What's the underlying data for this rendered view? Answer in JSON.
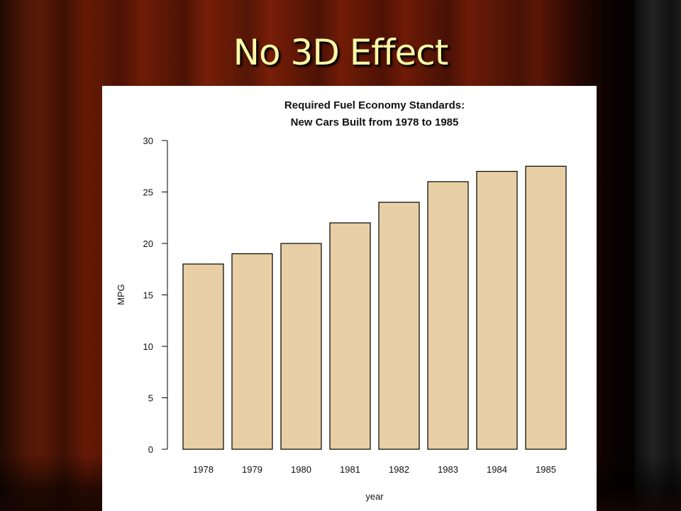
{
  "slide": {
    "title": "No 3D Effect"
  },
  "chart_data": {
    "type": "bar",
    "title_lines": [
      "Required Fuel Economy Standards:",
      "New Cars Built from 1978 to 1985"
    ],
    "categories": [
      "1978",
      "1979",
      "1980",
      "1981",
      "1982",
      "1983",
      "1984",
      "1985"
    ],
    "values": [
      18,
      19,
      20,
      22,
      24,
      26,
      27,
      27.5
    ],
    "xlabel": "year",
    "ylabel": "MPG",
    "ylim": [
      0,
      30
    ],
    "yticks": [
      0,
      5,
      10,
      15,
      20,
      25,
      30
    ],
    "bar_color": "#e8cfa6",
    "bar_edge_color": "#000000",
    "grid": false,
    "legend": "none"
  }
}
